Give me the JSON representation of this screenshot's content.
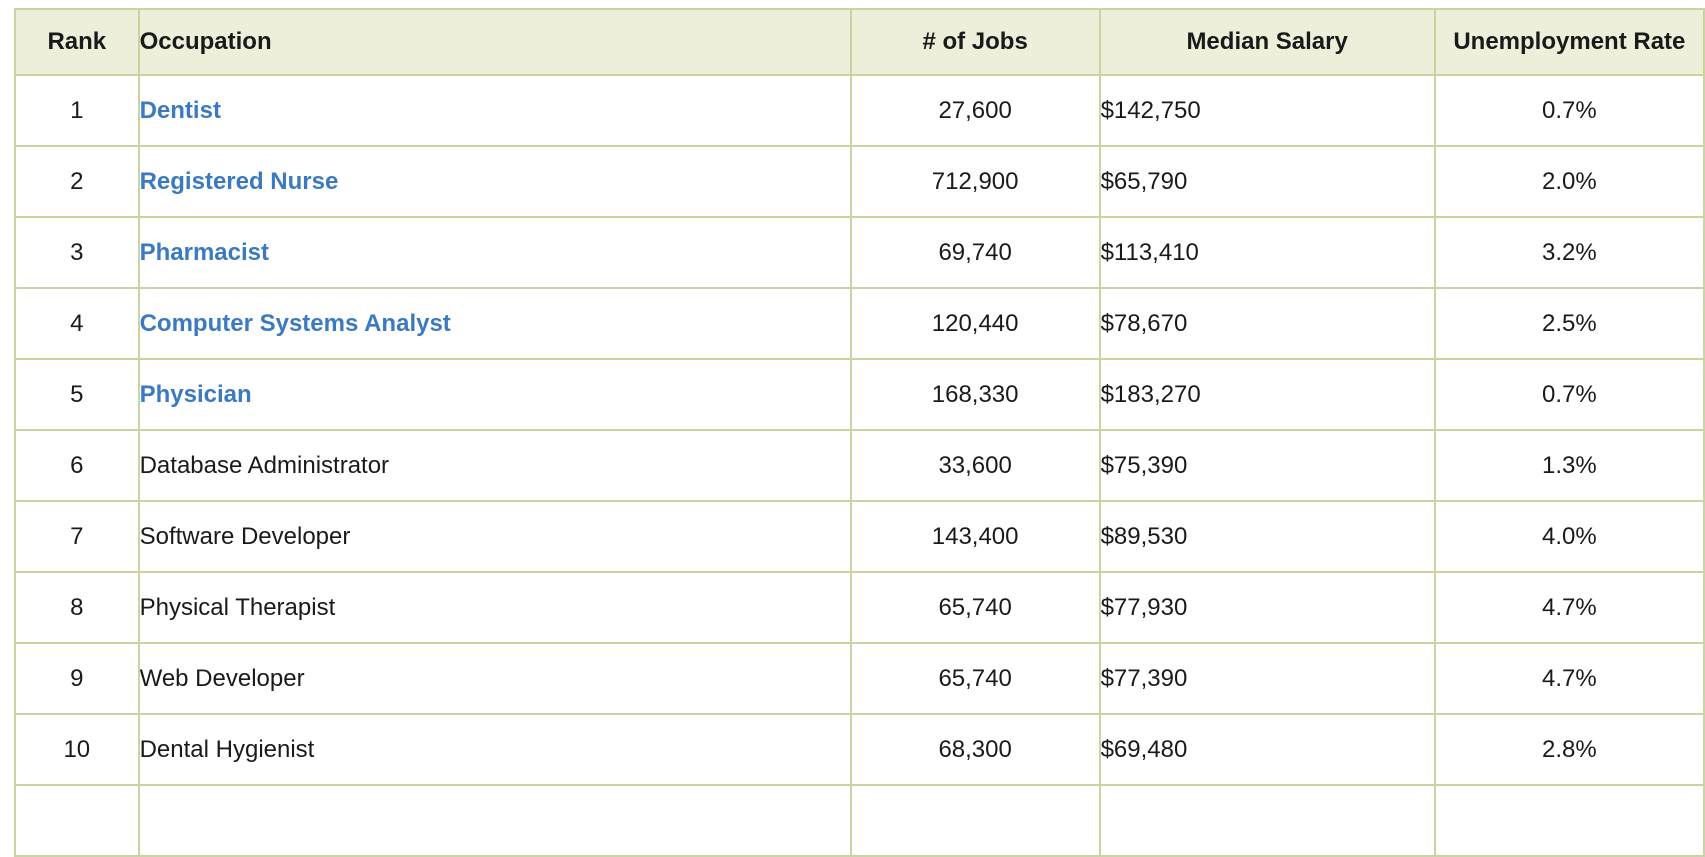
{
  "colors": {
    "header_bg": "#edefda",
    "border": "#ccd3a0",
    "link_blue": "#3b7ac0",
    "text": "#1a1a1a",
    "page_bg": "#ffffff"
  },
  "table": {
    "columns": [
      {
        "key": "rank",
        "label": "Rank"
      },
      {
        "key": "occupation",
        "label": "Occupation"
      },
      {
        "key": "jobs",
        "label": "# of Jobs"
      },
      {
        "key": "salary",
        "label": "Median Salary"
      },
      {
        "key": "unemployment",
        "label": "Unemployment Rate"
      }
    ],
    "rows": [
      {
        "rank": "1",
        "occupation": "Dentist",
        "is_link": true,
        "jobs": "27,600",
        "salary": "$142,750",
        "unemployment": "0.7%"
      },
      {
        "rank": "2",
        "occupation": "Registered Nurse",
        "is_link": true,
        "jobs": "712,900",
        "salary": "$65,790",
        "unemployment": "2.0%"
      },
      {
        "rank": "3",
        "occupation": "Pharmacist",
        "is_link": true,
        "jobs": "69,740",
        "salary": "$113,410",
        "unemployment": "3.2%"
      },
      {
        "rank": "4",
        "occupation": "Computer Systems Analyst",
        "is_link": true,
        "jobs": "120,440",
        "salary": "$78,670",
        "unemployment": "2.5%"
      },
      {
        "rank": "5",
        "occupation": "Physician",
        "is_link": true,
        "jobs": "168,330",
        "salary": "$183,270",
        "unemployment": "0.7%"
      },
      {
        "rank": "6",
        "occupation": "Database Administrator",
        "is_link": false,
        "jobs": "33,600",
        "salary": "$75,390",
        "unemployment": "1.3%"
      },
      {
        "rank": "7",
        "occupation": "Software Developer",
        "is_link": false,
        "jobs": "143,400",
        "salary": "$89,530",
        "unemployment": "4.0%"
      },
      {
        "rank": "8",
        "occupation": "Physical Therapist",
        "is_link": false,
        "jobs": "65,740",
        "salary": "$77,930",
        "unemployment": "4.7%"
      },
      {
        "rank": "9",
        "occupation": "Web Developer",
        "is_link": false,
        "jobs": "65,740",
        "salary": "$77,390",
        "unemployment": "4.7%"
      },
      {
        "rank": "10",
        "occupation": "Dental Hygienist",
        "is_link": false,
        "jobs": "68,300",
        "salary": "$69,480",
        "unemployment": "2.8%"
      }
    ]
  }
}
